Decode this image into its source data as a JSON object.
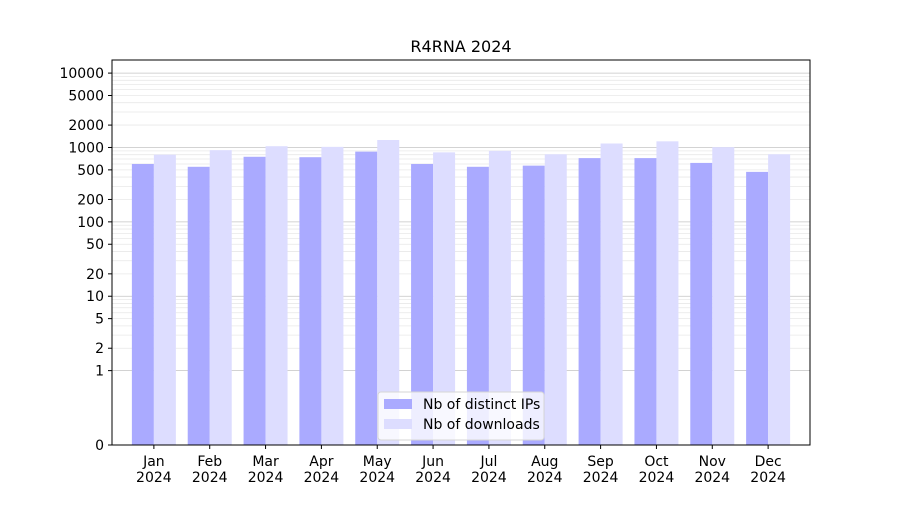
{
  "chart_data": {
    "type": "bar",
    "title": "R4RNA 2024",
    "xlabel": "",
    "ylabel": "",
    "y_scale": "symlog",
    "ylim": [
      0,
      15000
    ],
    "y_ticks": [
      0,
      1,
      2,
      5,
      10,
      20,
      50,
      100,
      200,
      500,
      1000,
      2000,
      5000,
      10000
    ],
    "y_tick_labels": [
      "0",
      "1",
      "2",
      "5",
      "10",
      "20",
      "50",
      "100",
      "200",
      "500",
      "1000",
      "2000",
      "5000",
      "10000"
    ],
    "grid": "horizontal",
    "legend_position": "bottom-center",
    "categories": [
      "Jan\n2024",
      "Feb\n2024",
      "Mar\n2024",
      "Apr\n2024",
      "May\n2024",
      "Jun\n2024",
      "Jul\n2024",
      "Aug\n2024",
      "Sep\n2024",
      "Oct\n2024",
      "Nov\n2024",
      "Dec\n2024"
    ],
    "series": [
      {
        "name": "Nb of distinct IPs",
        "color": "#aaaaff",
        "values": [
          600,
          550,
          750,
          740,
          880,
          600,
          550,
          570,
          720,
          720,
          620,
          470
        ]
      },
      {
        "name": "Nb of downloads",
        "color": "#ddddff",
        "values": [
          800,
          920,
          1040,
          1020,
          1260,
          860,
          900,
          810,
          1130,
          1210,
          1010,
          810
        ]
      }
    ]
  }
}
